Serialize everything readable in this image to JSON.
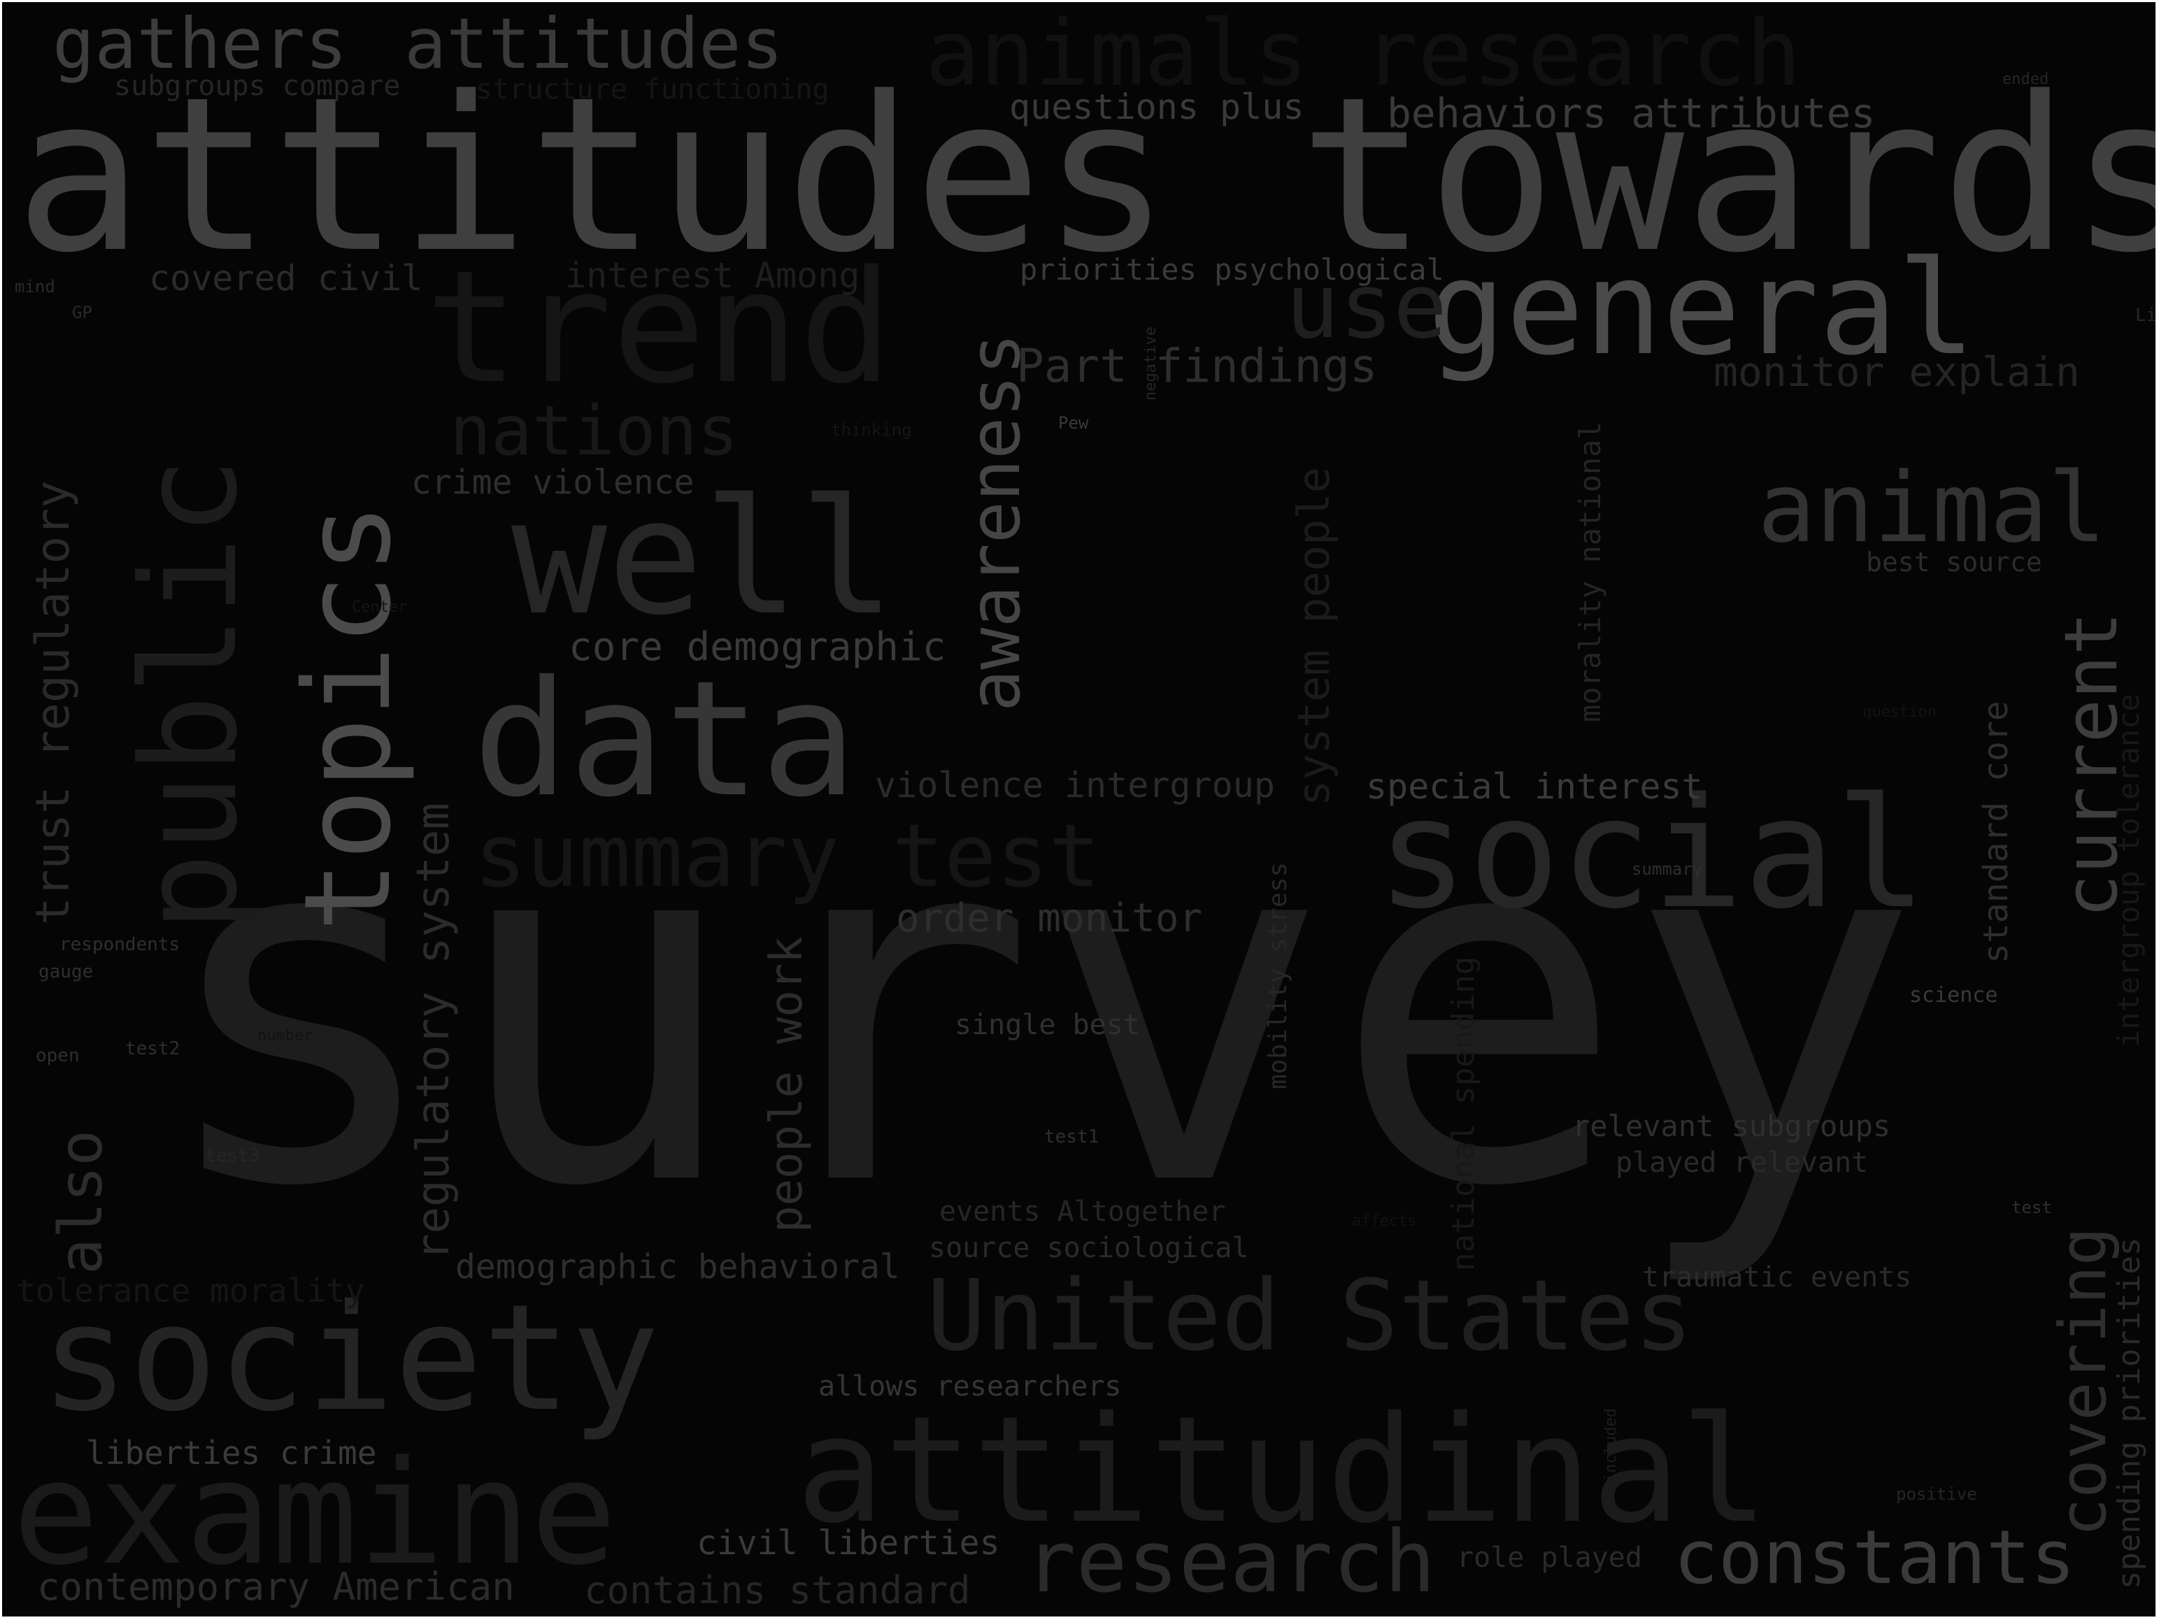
{
  "background_color": "#050505",
  "words": [
    {
      "text": "survey",
      "color": "#1d1d1d"
    },
    {
      "text": "attitudes towards",
      "color": "#3f3f3f"
    },
    {
      "text": "general",
      "color": "#4a4a4a"
    },
    {
      "text": "trend",
      "color": "#151515"
    },
    {
      "text": "use",
      "color": "#1f1f1f"
    },
    {
      "text": "well",
      "color": "#262626"
    },
    {
      "text": "data",
      "color": "#363636"
    },
    {
      "text": "topics",
      "color": "#4b4b4b"
    },
    {
      "text": "public",
      "color": "#1c1c1c"
    },
    {
      "text": "awareness",
      "color": "#454545"
    },
    {
      "text": "social",
      "color": "#262626"
    },
    {
      "text": "animal",
      "color": "#323232"
    },
    {
      "text": "current",
      "color": "#3d3d3d"
    },
    {
      "text": "society",
      "color": "#242424"
    },
    {
      "text": "examine",
      "color": "#1a1a1a"
    },
    {
      "text": "attitudinal",
      "color": "#1b1b1b"
    },
    {
      "text": "United States",
      "color": "#1f1f1f"
    },
    {
      "text": "research",
      "color": "#2a2a2a"
    },
    {
      "text": "constants",
      "color": "#3a3a3a"
    },
    {
      "text": "covering",
      "color": "#2e2e2e"
    },
    {
      "text": "animals research",
      "color": "#101010"
    },
    {
      "text": "gathers",
      "color": "#3d3d3d"
    },
    {
      "text": "attitudes",
      "color": "#3a3a3a"
    },
    {
      "text": "summary test",
      "color": "#151515"
    },
    {
      "text": "nations",
      "color": "#181818"
    },
    {
      "text": "also",
      "color": "#2c2c2c"
    },
    {
      "text": "trust regulatory",
      "color": "#2a2a2a"
    },
    {
      "text": "regulatory system",
      "color": "#2b2b2b"
    },
    {
      "text": "system people",
      "color": "#1b1b1b"
    },
    {
      "text": "people work",
      "color": "#2c2c2c"
    },
    {
      "text": "Part findings",
      "color": "#2e2e2e"
    },
    {
      "text": "monitor explain",
      "color": "#242424"
    },
    {
      "text": "behaviors attributes",
      "color": "#3a3a3a"
    },
    {
      "text": "questions plus",
      "color": "#3a3a3a"
    },
    {
      "text": "priorities psychological",
      "color": "#3a3a3a"
    },
    {
      "text": "covered civil",
      "color": "#2a2a2a"
    },
    {
      "text": "interest Among",
      "color": "#1e1e1e"
    },
    {
      "text": "subgroups compare",
      "color": "#262626"
    },
    {
      "text": "structure functioning",
      "color": "#151515"
    },
    {
      "text": "crime violence",
      "color": "#2e2e2e"
    },
    {
      "text": "core demographic",
      "color": "#3a3a3a"
    },
    {
      "text": "violence intergroup",
      "color": "#2b2b2b"
    },
    {
      "text": "special interest",
      "color": "#3a3a3a"
    },
    {
      "text": "order monitor",
      "color": "#2e2e2e"
    },
    {
      "text": "single best",
      "color": "#303030"
    },
    {
      "text": "morality national",
      "color": "#242424"
    },
    {
      "text": "standard core",
      "color": "#2e2e2e"
    },
    {
      "text": "best source",
      "color": "#2c2c2c"
    },
    {
      "text": "intergroup tolerance",
      "color": "#181818"
    },
    {
      "text": "mobility stress",
      "color": "#272727"
    },
    {
      "text": "national spending",
      "color": "#181818"
    },
    {
      "text": "relevant subgroups",
      "color": "#2f2f2f"
    },
    {
      "text": "played relevant",
      "color": "#2a2a2a"
    },
    {
      "text": "traumatic events",
      "color": "#2b2b2b"
    },
    {
      "text": "spending priorities",
      "color": "#2a2a2a"
    },
    {
      "text": "events Altogether",
      "color": "#262626"
    },
    {
      "text": "source sociological",
      "color": "#2a2a2a"
    },
    {
      "text": "demographic behavioral",
      "color": "#2e2e2e"
    },
    {
      "text": "tolerance morality",
      "color": "#151515"
    },
    {
      "text": "allows researchers",
      "color": "#353535"
    },
    {
      "text": "liberties crime",
      "color": "#3a3a3a"
    },
    {
      "text": "civil liberties",
      "color": "#3a3a3a"
    },
    {
      "text": "contains standard",
      "color": "#262626"
    },
    {
      "text": "contemporary American",
      "color": "#2c2c2c"
    },
    {
      "text": "role played",
      "color": "#2a2a2a"
    },
    {
      "text": "science",
      "color": "#3a3a3a"
    },
    {
      "text": "summary",
      "color": "#2f2f2f"
    },
    {
      "text": "question",
      "color": "#121212"
    },
    {
      "text": "Pew",
      "color": "#3a3a3a"
    },
    {
      "text": "thinking",
      "color": "#151515"
    },
    {
      "text": "negative",
      "color": "#262626"
    },
    {
      "text": "Center",
      "color": "#151515"
    },
    {
      "text": "mind",
      "color": "#2a2a2a"
    },
    {
      "text": "GP",
      "color": "#2a2a2a"
    },
    {
      "text": "respondents",
      "color": "#2f2f2f"
    },
    {
      "text": "gauge",
      "color": "#2f2f2f"
    },
    {
      "text": "open",
      "color": "#2f2f2f"
    },
    {
      "text": "test2",
      "color": "#2f2f2f"
    },
    {
      "text": "number",
      "color": "#121212"
    },
    {
      "text": "test3",
      "color": "#262626"
    },
    {
      "text": "test1",
      "color": "#2f2f2f"
    },
    {
      "text": "affects",
      "color": "#121212"
    },
    {
      "text": "test",
      "color": "#2f2f2f"
    },
    {
      "text": "included",
      "color": "#1e1e1e"
    },
    {
      "text": "positive",
      "color": "#262626"
    },
    {
      "text": "ended",
      "color": "#262626"
    },
    {
      "text": "Li",
      "color": "#262626"
    }
  ]
}
